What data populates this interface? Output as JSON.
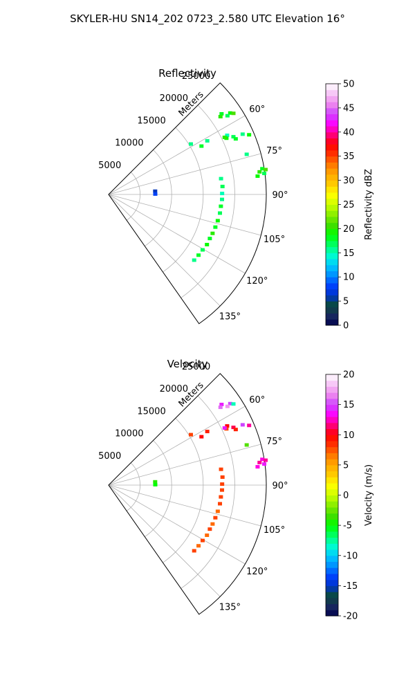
{
  "figure": {
    "title": "SKYLER-HU  SN14_202  0723_2.580 UTC Elevation 16°"
  },
  "colors": {
    "grid": "#b0b0b0",
    "frame": "#000000"
  },
  "chart_data": [
    {
      "type": "polar-sector",
      "id": "reflectivity",
      "title": "Reflectivity",
      "radial_label": "Meters",
      "radial_ticks": [
        5000,
        10000,
        15000,
        20000,
        25000
      ],
      "rmax": 25000,
      "theta_range_deg": [
        45,
        145
      ],
      "theta_ticks": [
        60,
        75,
        90,
        105,
        120,
        135
      ],
      "theta_tick_labels": [
        "60°",
        "75°",
        "90°",
        "105°",
        "120°",
        "135°"
      ],
      "grid": true,
      "colorbar": {
        "label": "Reflectivity dBZ",
        "range": [
          0,
          50
        ],
        "ticks": [
          0,
          5,
          10,
          15,
          20,
          25,
          30,
          35,
          40,
          45,
          50
        ],
        "levels": 40,
        "stops": [
          "#00004d",
          "#1a2a60",
          "#0a4a3a",
          "#0033cc",
          "#0044ff",
          "#0090ff",
          "#00ccff",
          "#00ffcc",
          "#00ff66",
          "#00ff00",
          "#44dd00",
          "#88ee00",
          "#ccff00",
          "#ffff00",
          "#ffcc00",
          "#ffaa00",
          "#ff7700",
          "#ff3300",
          "#ff0000",
          "#ff0080",
          "#ff00ff",
          "#cc44ff",
          "#ee88ee",
          "#f6c2f6",
          "#ffffff"
        ]
      },
      "echoes": [
        {
          "theta": 54.5,
          "r": 22000,
          "value": 18
        },
        {
          "theta": 55.2,
          "r": 21600,
          "value": 20
        },
        {
          "theta": 56.2,
          "r": 23200,
          "value": 19
        },
        {
          "theta": 57.0,
          "r": 23600,
          "value": 21
        },
        {
          "theta": 56.5,
          "r": 22600,
          "value": 17
        },
        {
          "theta": 58.5,
          "r": 15300,
          "value": 16
        },
        {
          "theta": 62.5,
          "r": 16600,
          "value": 18
        },
        {
          "theta": 61.5,
          "r": 17800,
          "value": 16
        },
        {
          "theta": 63.5,
          "r": 21000,
          "value": 15
        },
        {
          "theta": 64.5,
          "r": 20700,
          "value": 19
        },
        {
          "theta": 65.2,
          "r": 21800,
          "value": 17
        },
        {
          "theta": 63.8,
          "r": 20500,
          "value": 20
        },
        {
          "theta": 66.4,
          "r": 22000,
          "value": 18
        },
        {
          "theta": 65.8,
          "r": 23300,
          "value": 16
        },
        {
          "theta": 67.0,
          "r": 24200,
          "value": 19
        },
        {
          "theta": 73.8,
          "r": 22800,
          "value": 16
        },
        {
          "theta": 80.5,
          "r": 24700,
          "value": 18
        },
        {
          "theta": 81.5,
          "r": 24200,
          "value": 20
        },
        {
          "theta": 82.3,
          "r": 24900,
          "value": 17
        },
        {
          "theta": 83.0,
          "r": 23800,
          "value": 19
        },
        {
          "theta": 81.0,
          "r": 25200,
          "value": 21
        },
        {
          "theta": 82.0,
          "r": 18000,
          "value": 16
        },
        {
          "theta": 86.0,
          "r": 18100,
          "value": 17
        },
        {
          "theta": 89.5,
          "r": 18000,
          "value": 15
        },
        {
          "theta": 92.5,
          "r": 18000,
          "value": 16
        },
        {
          "theta": 96.0,
          "r": 17900,
          "value": 18
        },
        {
          "theta": 99.5,
          "r": 17900,
          "value": 17
        },
        {
          "theta": 103.5,
          "r": 17800,
          "value": 19
        },
        {
          "theta": 107.0,
          "r": 17700,
          "value": 18
        },
        {
          "theta": 110.5,
          "r": 17600,
          "value": 20
        },
        {
          "theta": 113.5,
          "r": 17500,
          "value": 18
        },
        {
          "theta": 117.0,
          "r": 17500,
          "value": 19
        },
        {
          "theta": 120.5,
          "r": 17300,
          "value": 17
        },
        {
          "theta": 124.0,
          "r": 17200,
          "value": 18
        },
        {
          "theta": 127.5,
          "r": 17100,
          "value": 16
        },
        {
          "theta": 86.0,
          "r": 7400,
          "value": 6
        },
        {
          "theta": 89.5,
          "r": 7400,
          "value": 8
        }
      ]
    },
    {
      "type": "polar-sector",
      "id": "velocity",
      "title": "Velocity",
      "radial_label": "Meters",
      "radial_ticks": [
        5000,
        10000,
        15000,
        20000,
        25000
      ],
      "rmax": 25000,
      "theta_range_deg": [
        45,
        145
      ],
      "theta_ticks": [
        60,
        75,
        90,
        105,
        120,
        135
      ],
      "theta_tick_labels": [
        "60°",
        "75°",
        "90°",
        "105°",
        "120°",
        "135°"
      ],
      "grid": true,
      "colorbar": {
        "label": "Velocity (m/s)",
        "range": [
          -20,
          20
        ],
        "ticks": [
          -20,
          -15,
          -10,
          -5,
          0,
          5,
          10,
          15,
          20
        ],
        "levels": 40,
        "stops": [
          "#00004d",
          "#1a2a60",
          "#0a4a3a",
          "#0033cc",
          "#0044ff",
          "#0090ff",
          "#00ccff",
          "#00ffcc",
          "#00ff66",
          "#00ff00",
          "#44dd00",
          "#88ee00",
          "#ccff00",
          "#ffff00",
          "#ffcc00",
          "#ffaa00",
          "#ff7700",
          "#ff3300",
          "#ff0000",
          "#ff0080",
          "#ff00ff",
          "#cc44ff",
          "#ee88ee",
          "#f6c2f6",
          "#ffffff"
        ]
      },
      "echoes": [
        {
          "theta": 54.5,
          "r": 22000,
          "value": 14
        },
        {
          "theta": 55.2,
          "r": 21600,
          "value": 16
        },
        {
          "theta": 56.2,
          "r": 23200,
          "value": 15
        },
        {
          "theta": 57.0,
          "r": 23600,
          "value": -8
        },
        {
          "theta": 56.5,
          "r": 22600,
          "value": 17
        },
        {
          "theta": 58.5,
          "r": 15300,
          "value": 8
        },
        {
          "theta": 62.5,
          "r": 16600,
          "value": 10
        },
        {
          "theta": 61.5,
          "r": 17800,
          "value": 9
        },
        {
          "theta": 63.5,
          "r": 21000,
          "value": 10
        },
        {
          "theta": 64.5,
          "r": 20700,
          "value": 8
        },
        {
          "theta": 65.2,
          "r": 21800,
          "value": 11
        },
        {
          "theta": 63.8,
          "r": 20500,
          "value": 14
        },
        {
          "theta": 66.4,
          "r": 22000,
          "value": 9
        },
        {
          "theta": 65.8,
          "r": 23300,
          "value": 15
        },
        {
          "theta": 67.0,
          "r": 24200,
          "value": 12
        },
        {
          "theta": 73.8,
          "r": 22800,
          "value": -3
        },
        {
          "theta": 80.5,
          "r": 24700,
          "value": 13
        },
        {
          "theta": 81.5,
          "r": 24200,
          "value": 12
        },
        {
          "theta": 82.3,
          "r": 24900,
          "value": 14
        },
        {
          "theta": 83.0,
          "r": 23800,
          "value": 13
        },
        {
          "theta": 81.0,
          "r": 25200,
          "value": 12
        },
        {
          "theta": 82.0,
          "r": 18000,
          "value": 8
        },
        {
          "theta": 86.0,
          "r": 18100,
          "value": 8
        },
        {
          "theta": 89.5,
          "r": 18000,
          "value": 8
        },
        {
          "theta": 92.5,
          "r": 18000,
          "value": 8
        },
        {
          "theta": 96.0,
          "r": 17900,
          "value": 8
        },
        {
          "theta": 99.5,
          "r": 17900,
          "value": 8
        },
        {
          "theta": 103.5,
          "r": 17800,
          "value": 7
        },
        {
          "theta": 107.0,
          "r": 17700,
          "value": 8
        },
        {
          "theta": 110.5,
          "r": 17600,
          "value": 7
        },
        {
          "theta": 113.5,
          "r": 17500,
          "value": 8
        },
        {
          "theta": 117.0,
          "r": 17500,
          "value": 7
        },
        {
          "theta": 120.5,
          "r": 17300,
          "value": 8
        },
        {
          "theta": 124.0,
          "r": 17200,
          "value": 7
        },
        {
          "theta": 127.5,
          "r": 17100,
          "value": 8
        },
        {
          "theta": 86.0,
          "r": 7400,
          "value": -4
        },
        {
          "theta": 89.5,
          "r": 7400,
          "value": -5
        }
      ]
    }
  ]
}
